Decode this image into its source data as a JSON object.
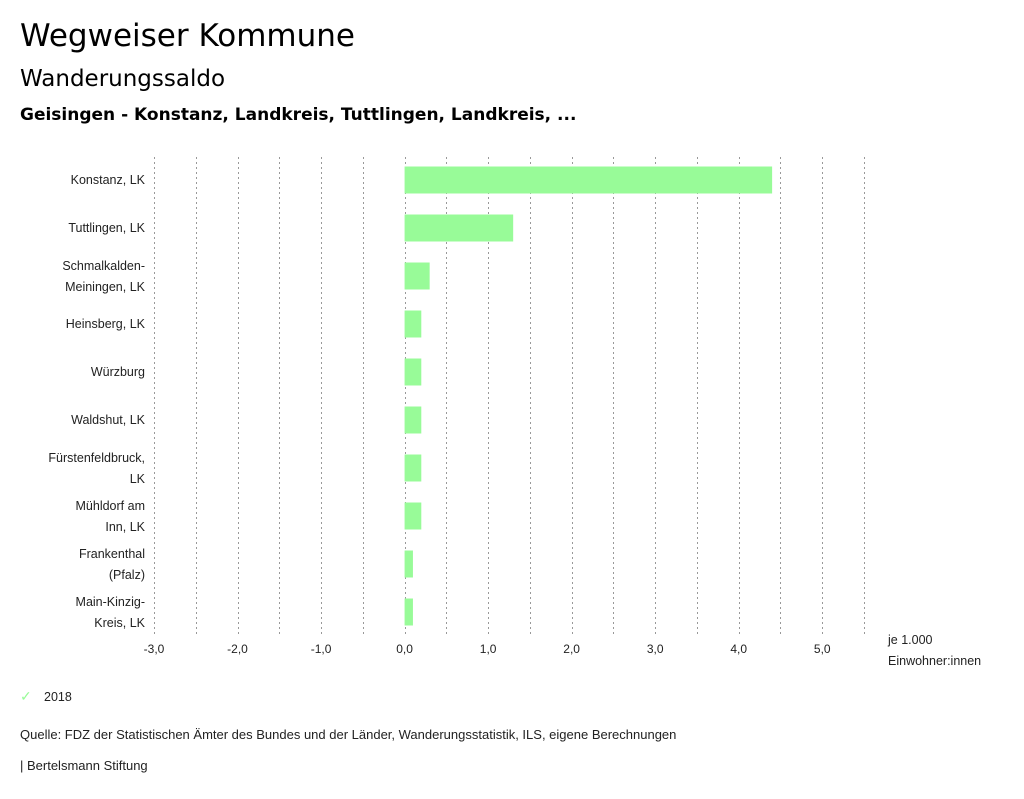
{
  "header": {
    "title": "Wegweiser Kommune",
    "subtitle": "Wanderungssaldo",
    "region": "Geisingen - Konstanz, Landkreis, Tuttlingen, Landkreis, ..."
  },
  "chart_data": {
    "type": "bar",
    "orientation": "horizontal",
    "categories": [
      [
        "Konstanz, LK"
      ],
      [
        "Tuttlingen, LK"
      ],
      [
        "Schmalkalden-",
        "Meiningen, LK"
      ],
      [
        "Heinsberg, LK"
      ],
      [
        "Würzburg"
      ],
      [
        "Waldshut, LK"
      ],
      [
        "Fürstenfeldbruck,",
        "LK"
      ],
      [
        "Mühldorf am",
        "Inn, LK"
      ],
      [
        "Frankenthal",
        "(Pfalz)"
      ],
      [
        "Main-Kinzig-",
        "Kreis, LK"
      ]
    ],
    "series": [
      {
        "name": "2018",
        "color": "#98fb98",
        "values": [
          4.4,
          1.3,
          0.3,
          0.2,
          0.2,
          0.2,
          0.2,
          0.2,
          0.1,
          0.1
        ]
      }
    ],
    "xlim": [
      -3,
      5.5
    ],
    "xticks": [
      -3,
      -2,
      -1,
      0,
      1,
      2,
      3,
      4,
      5
    ],
    "xtick_labels": [
      "-3,0",
      "-2,0",
      "-1,0",
      "0,0",
      "1,0",
      "2,0",
      "3,0",
      "4,0",
      "5,0"
    ],
    "xlabel": [
      "je 1.000",
      "Einwohner:innen"
    ],
    "grid": "vertical dotted"
  },
  "legend": {
    "label": "2018",
    "icon": "check-icon",
    "color": "#98fb98"
  },
  "footer": {
    "source": "Quelle: FDZ der Statistischen Ämter des Bundes und der Länder, Wanderungsstatistik, ILS, eigene Berechnungen",
    "publisher": "| Bertelsmann Stiftung"
  }
}
